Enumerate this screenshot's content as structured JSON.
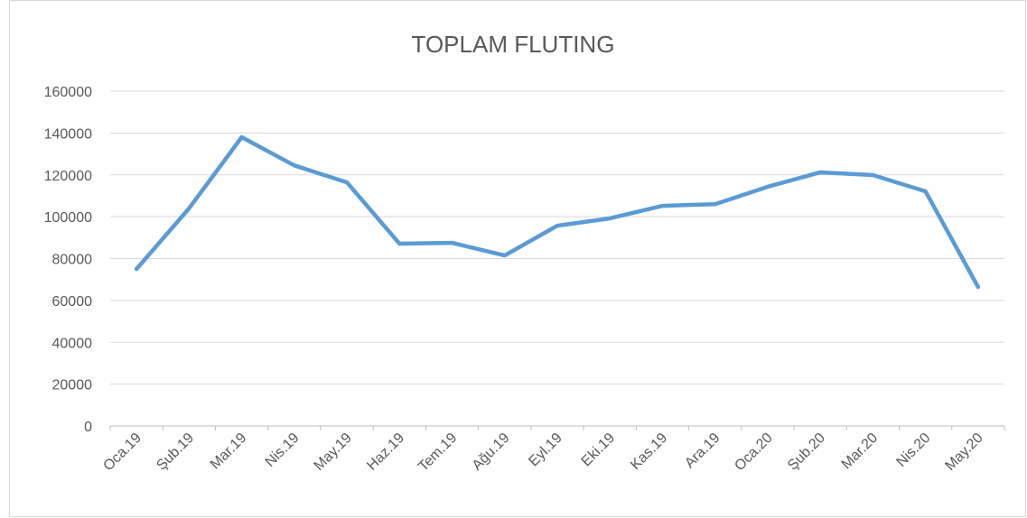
{
  "chart_data": {
    "type": "line",
    "title": "TOPLAM FLUTING",
    "categories": [
      "Oca.19",
      "Şub.19",
      "Mar.19",
      "Nis.19",
      "May.19",
      "Haz.19",
      "Tem.19",
      "Ağu.19",
      "Eyl.19",
      "Eki.19",
      "Kas.19",
      "Ara.19",
      "Oca.20",
      "Şub.20",
      "Mar.20",
      "Nis.20",
      "May.20"
    ],
    "series": [
      {
        "name": "TOPLAM FLUTING",
        "color": "#5b9bd5",
        "values": [
          75000,
          104000,
          138000,
          124500,
          116400,
          87100,
          87500,
          81500,
          95700,
          99200,
          105200,
          106000,
          114300,
          121200,
          119900,
          112100,
          66400
        ]
      }
    ],
    "ylim": [
      0,
      160000
    ],
    "yticks": [
      0,
      20000,
      40000,
      60000,
      80000,
      100000,
      120000,
      140000,
      160000
    ],
    "grid": true
  }
}
